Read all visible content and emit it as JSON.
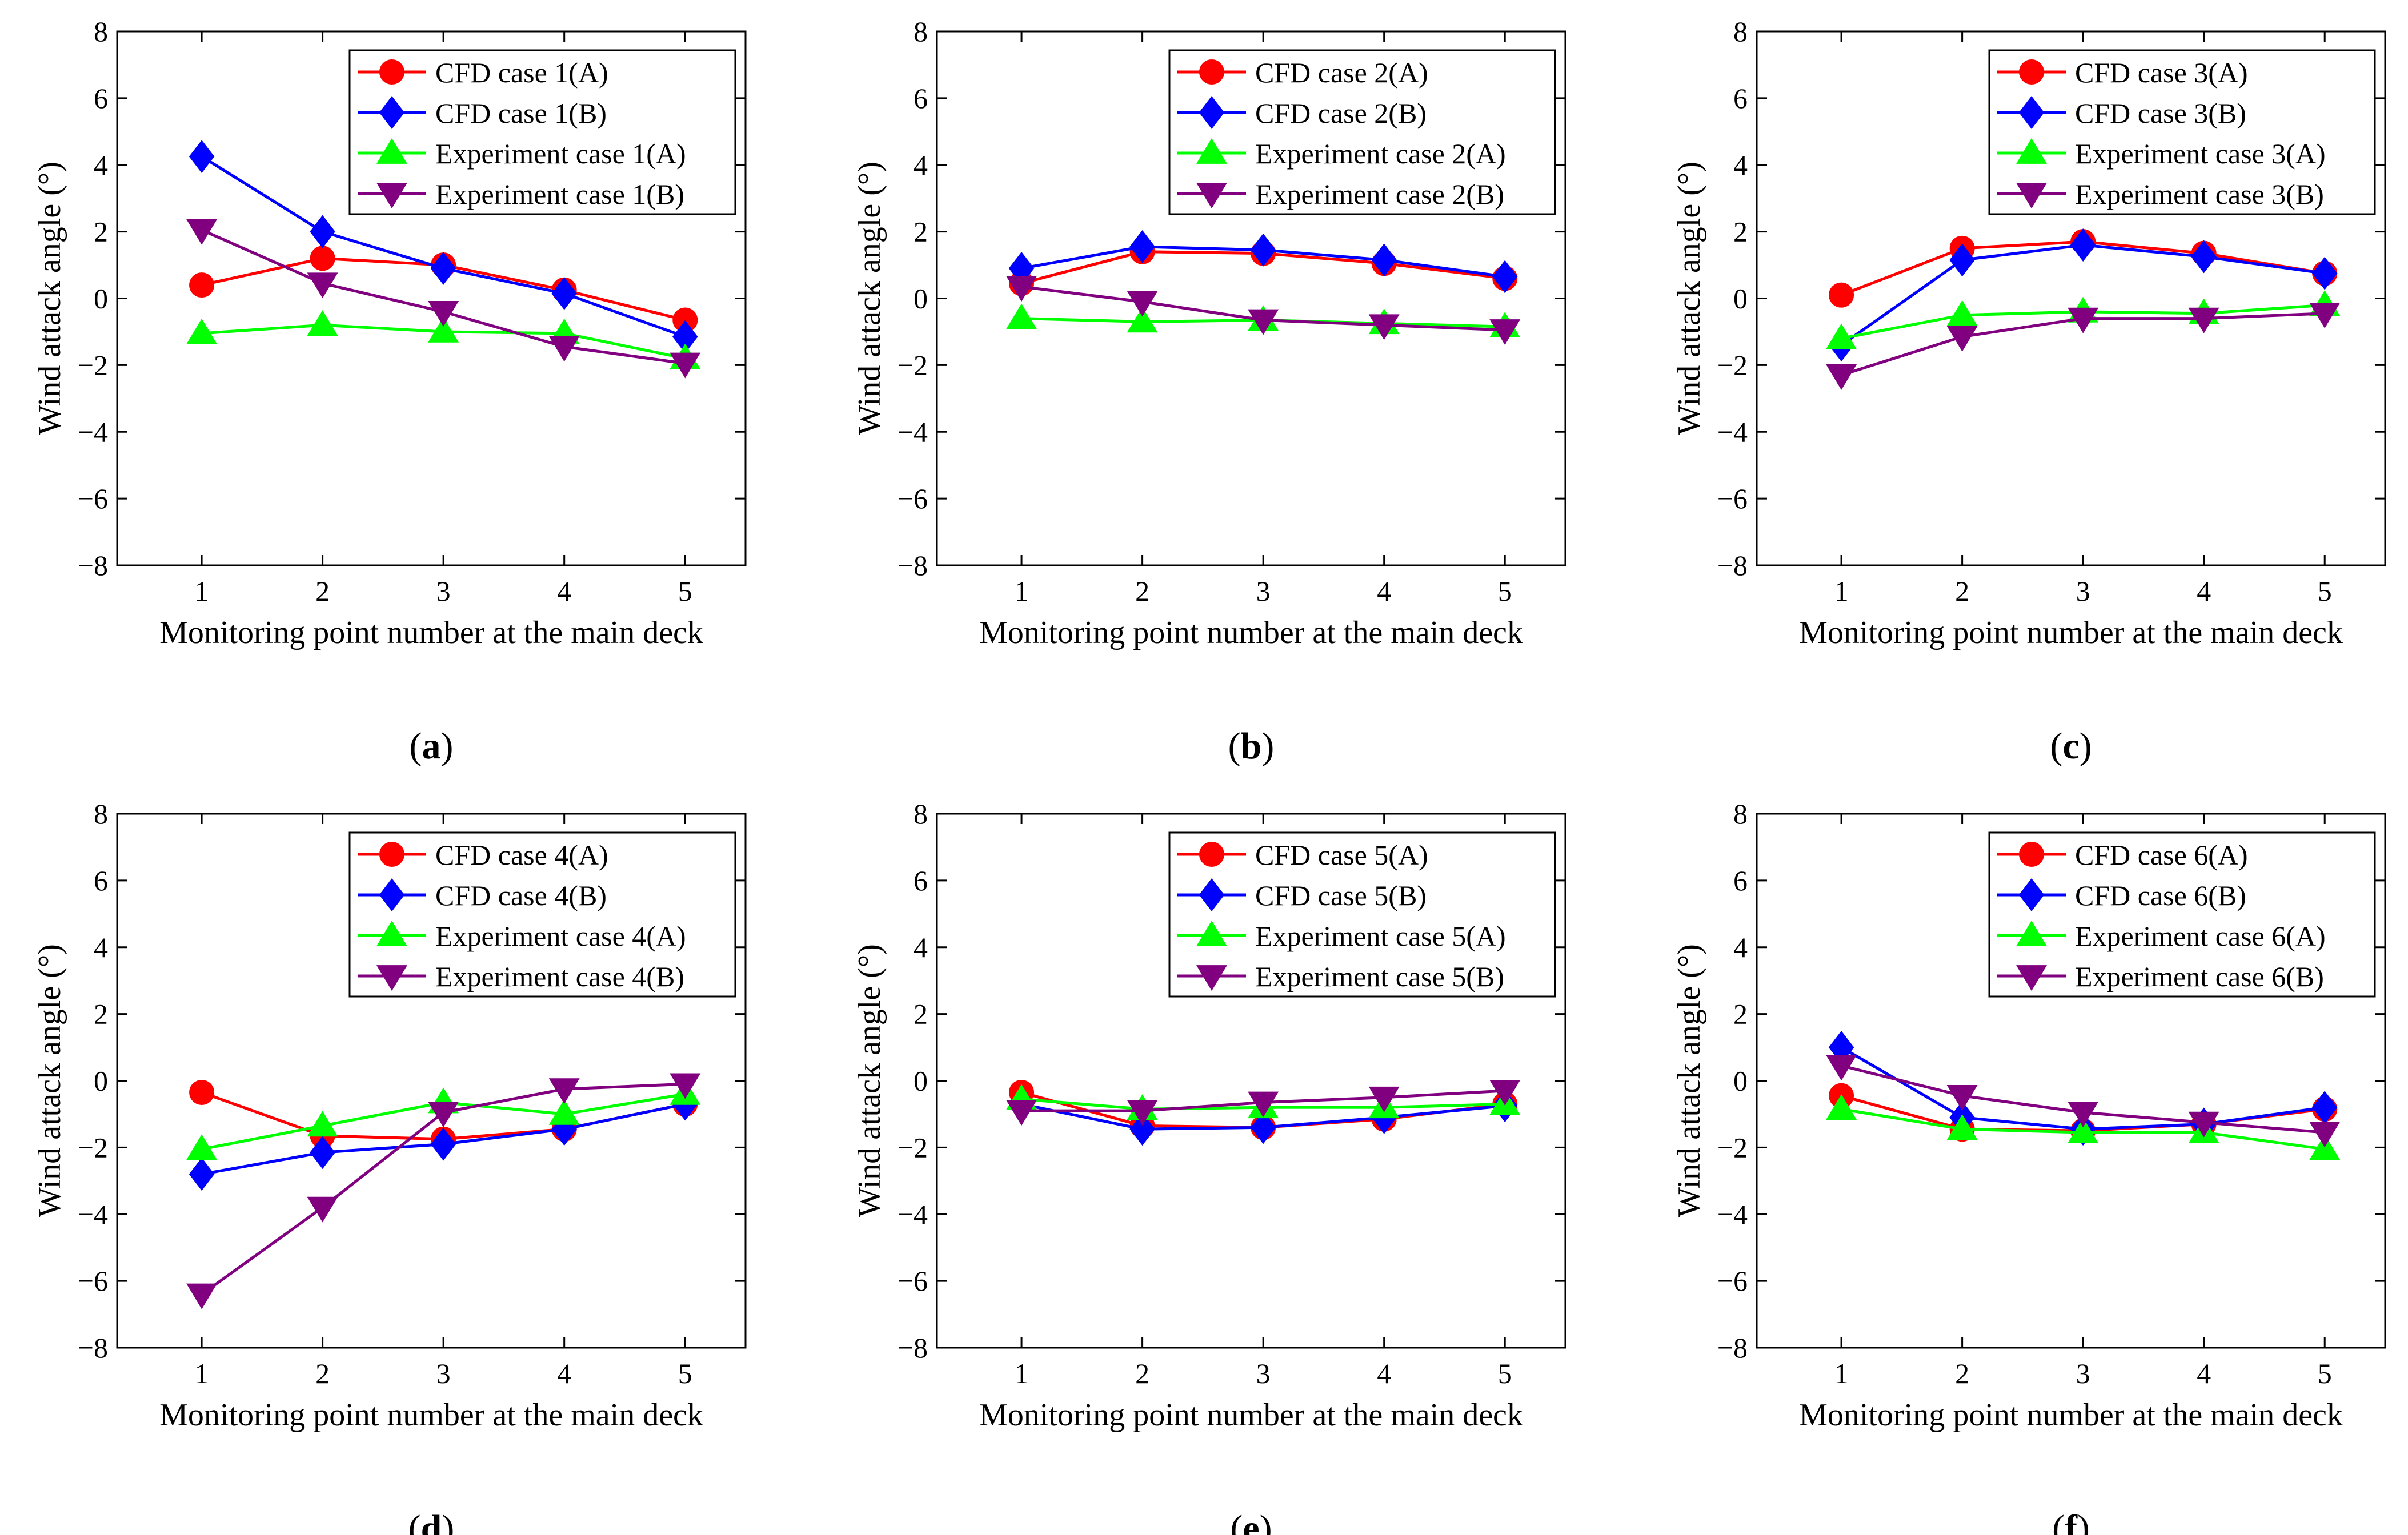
{
  "chart_data": [
    {
      "type": "line",
      "label": "(a)",
      "xlabel": "Monitoring point number at the main deck",
      "ylabel": "Wind attack angle (°)",
      "x": [
        1,
        2,
        3,
        4,
        5
      ],
      "xlim": [
        0.3,
        5.5
      ],
      "ylim": [
        -8,
        8
      ],
      "yticks": [
        -8,
        -6,
        -4,
        -2,
        0,
        2,
        4,
        6,
        8
      ],
      "series": [
        {
          "name": "CFD case 1(A)",
          "values": [
            0.4,
            1.2,
            1.0,
            0.25,
            -0.65
          ],
          "color": "#ff0000",
          "marker": "circle"
        },
        {
          "name": "CFD case 1(B)",
          "values": [
            4.25,
            2.0,
            0.9,
            0.15,
            -1.15
          ],
          "color": "#0000ff",
          "marker": "diamond"
        },
        {
          "name": "Experiment case 1(A)",
          "values": [
            -1.05,
            -0.8,
            -1.0,
            -1.05,
            -1.8
          ],
          "color": "#00ff00",
          "marker": "triangle-up"
        },
        {
          "name": "Experiment case 1(B)",
          "values": [
            2.05,
            0.45,
            -0.4,
            -1.45,
            -1.95
          ],
          "color": "#800080",
          "marker": "triangle-down"
        }
      ]
    },
    {
      "type": "line",
      "label": "(b)",
      "xlabel": "Monitoring point number at the main deck",
      "ylabel": "Wind attack angle (°)",
      "x": [
        1,
        2,
        3,
        4,
        5
      ],
      "xlim": [
        0.3,
        5.5
      ],
      "ylim": [
        -8,
        8
      ],
      "yticks": [
        -8,
        -6,
        -4,
        -2,
        0,
        2,
        4,
        6,
        8
      ],
      "series": [
        {
          "name": "CFD case 2(A)",
          "values": [
            0.45,
            1.4,
            1.35,
            1.05,
            0.6
          ],
          "color": "#ff0000",
          "marker": "circle"
        },
        {
          "name": "CFD case 2(B)",
          "values": [
            0.9,
            1.55,
            1.45,
            1.15,
            0.65
          ],
          "color": "#0000ff",
          "marker": "diamond"
        },
        {
          "name": "Experiment case 2(A)",
          "values": [
            -0.6,
            -0.7,
            -0.65,
            -0.75,
            -0.85
          ],
          "color": "#00ff00",
          "marker": "triangle-up"
        },
        {
          "name": "Experiment case 2(B)",
          "values": [
            0.35,
            -0.1,
            -0.65,
            -0.8,
            -0.95
          ],
          "color": "#800080",
          "marker": "triangle-down"
        }
      ]
    },
    {
      "type": "line",
      "label": "(c)",
      "xlabel": "Monitoring point number at the main deck",
      "ylabel": "Wind attack angle (°)",
      "x": [
        1,
        2,
        3,
        4,
        5
      ],
      "xlim": [
        0.3,
        5.5
      ],
      "ylim": [
        -8,
        8
      ],
      "yticks": [
        -8,
        -6,
        -4,
        -2,
        0,
        2,
        4,
        6,
        8
      ],
      "series": [
        {
          "name": "CFD case 3(A)",
          "values": [
            0.1,
            1.5,
            1.7,
            1.35,
            0.75
          ],
          "color": "#ff0000",
          "marker": "circle"
        },
        {
          "name": "CFD case 3(B)",
          "values": [
            -1.4,
            1.15,
            1.6,
            1.25,
            0.75
          ],
          "color": "#0000ff",
          "marker": "diamond"
        },
        {
          "name": "Experiment case 3(A)",
          "values": [
            -1.2,
            -0.5,
            -0.4,
            -0.45,
            -0.2
          ],
          "color": "#00ff00",
          "marker": "triangle-up"
        },
        {
          "name": "Experiment case 3(B)",
          "values": [
            -2.3,
            -1.15,
            -0.6,
            -0.6,
            -0.45
          ],
          "color": "#800080",
          "marker": "triangle-down"
        }
      ]
    },
    {
      "type": "line",
      "label": "(d)",
      "xlabel": "Monitoring point number at the main deck",
      "ylabel": "Wind attack angle (°)",
      "x": [
        1,
        2,
        3,
        4,
        5
      ],
      "xlim": [
        0.3,
        5.5
      ],
      "ylim": [
        -8,
        8
      ],
      "yticks": [
        -8,
        -6,
        -4,
        -2,
        0,
        2,
        4,
        6,
        8
      ],
      "series": [
        {
          "name": "CFD case 4(A)",
          "values": [
            -0.35,
            -1.65,
            -1.75,
            -1.45,
            -0.7
          ],
          "color": "#ff0000",
          "marker": "circle"
        },
        {
          "name": "CFD case 4(B)",
          "values": [
            -2.8,
            -2.15,
            -1.9,
            -1.45,
            -0.7
          ],
          "color": "#0000ff",
          "marker": "diamond"
        },
        {
          "name": "Experiment case 4(A)",
          "values": [
            -2.05,
            -1.35,
            -0.65,
            -1.0,
            -0.4
          ],
          "color": "#00ff00",
          "marker": "triangle-up"
        },
        {
          "name": "Experiment case 4(B)",
          "values": [
            -6.4,
            -3.8,
            -0.95,
            -0.25,
            -0.1
          ],
          "color": "#800080",
          "marker": "triangle-down"
        }
      ]
    },
    {
      "type": "line",
      "label": "(e)",
      "xlabel": "Monitoring point number at the main deck",
      "ylabel": "Wind attack angle (°)",
      "x": [
        1,
        2,
        3,
        4,
        5
      ],
      "xlim": [
        0.3,
        5.5
      ],
      "ylim": [
        -8,
        8
      ],
      "yticks": [
        -8,
        -6,
        -4,
        -2,
        0,
        2,
        4,
        6,
        8
      ],
      "series": [
        {
          "name": "CFD case 5(A)",
          "values": [
            -0.35,
            -1.35,
            -1.4,
            -1.15,
            -0.7
          ],
          "color": "#ff0000",
          "marker": "circle"
        },
        {
          "name": "CFD case 5(B)",
          "values": [
            -0.7,
            -1.45,
            -1.4,
            -1.1,
            -0.75
          ],
          "color": "#0000ff",
          "marker": "diamond"
        },
        {
          "name": "Experiment case 5(A)",
          "values": [
            -0.55,
            -0.85,
            -0.8,
            -0.8,
            -0.7
          ],
          "color": "#00ff00",
          "marker": "triangle-up"
        },
        {
          "name": "Experiment case 5(B)",
          "values": [
            -0.9,
            -0.9,
            -0.65,
            -0.5,
            -0.3
          ],
          "color": "#800080",
          "marker": "triangle-down"
        }
      ]
    },
    {
      "type": "line",
      "label": "(f)",
      "xlabel": "Monitoring point number at the main deck",
      "ylabel": "Wind attack angle (°)",
      "x": [
        1,
        2,
        3,
        4,
        5
      ],
      "xlim": [
        0.3,
        5.5
      ],
      "ylim": [
        -8,
        8
      ],
      "yticks": [
        -8,
        -6,
        -4,
        -2,
        0,
        2,
        4,
        6,
        8
      ],
      "series": [
        {
          "name": "CFD case 6(A)",
          "values": [
            -0.45,
            -1.45,
            -1.5,
            -1.3,
            -0.85
          ],
          "color": "#ff0000",
          "marker": "circle"
        },
        {
          "name": "CFD case 6(B)",
          "values": [
            1.0,
            -1.1,
            -1.45,
            -1.3,
            -0.8
          ],
          "color": "#0000ff",
          "marker": "diamond"
        },
        {
          "name": "Experiment case 6(A)",
          "values": [
            -0.85,
            -1.45,
            -1.55,
            -1.55,
            -2.05
          ],
          "color": "#00ff00",
          "marker": "triangle-up"
        },
        {
          "name": "Experiment case 6(B)",
          "values": [
            0.45,
            -0.45,
            -0.95,
            -1.25,
            -1.55
          ],
          "color": "#800080",
          "marker": "triangle-down"
        }
      ]
    }
  ]
}
